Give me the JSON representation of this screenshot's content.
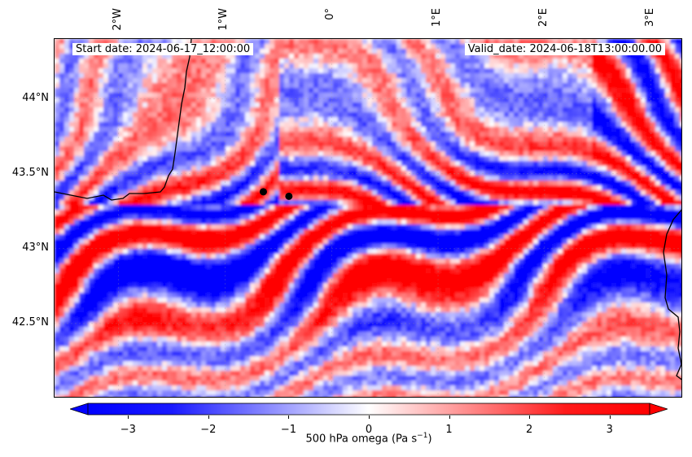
{
  "map": {
    "annotations": {
      "start_date": "Start date: 2024-06-17_12:00:00",
      "valid_date": "Valid_date: 2024-06-18T13:00:00.00"
    },
    "lon_labels": [
      "2°W",
      "1°W",
      "0°",
      "1°E",
      "2°E",
      "3°E"
    ],
    "lat_labels": [
      "44°N",
      "43.5°N",
      "43°N",
      "42.5°N"
    ],
    "lon_range": [
      -2.6,
      3.3
    ],
    "lat_range": [
      42.0,
      44.4
    ],
    "markers": [
      {
        "name": "point-1",
        "lon": -0.64,
        "lat": 43.38
      },
      {
        "name": "point-2",
        "lon": -0.4,
        "lat": 43.35
      }
    ],
    "colors": {
      "positive": "#ff0000",
      "negative": "#0000ff",
      "neutral": "#ffffff",
      "coastline": "#000000"
    }
  },
  "colorbar": {
    "ticks": [
      "−3",
      "−2",
      "−1",
      "0",
      "1",
      "2",
      "3"
    ],
    "tick_values": [
      -3,
      -2,
      -1,
      0,
      1,
      2,
      3
    ],
    "range": [
      -3.5,
      3.5
    ],
    "label": "500 hPa omega (Pa s",
    "label_sup": "−1",
    "label_close": ")"
  }
}
